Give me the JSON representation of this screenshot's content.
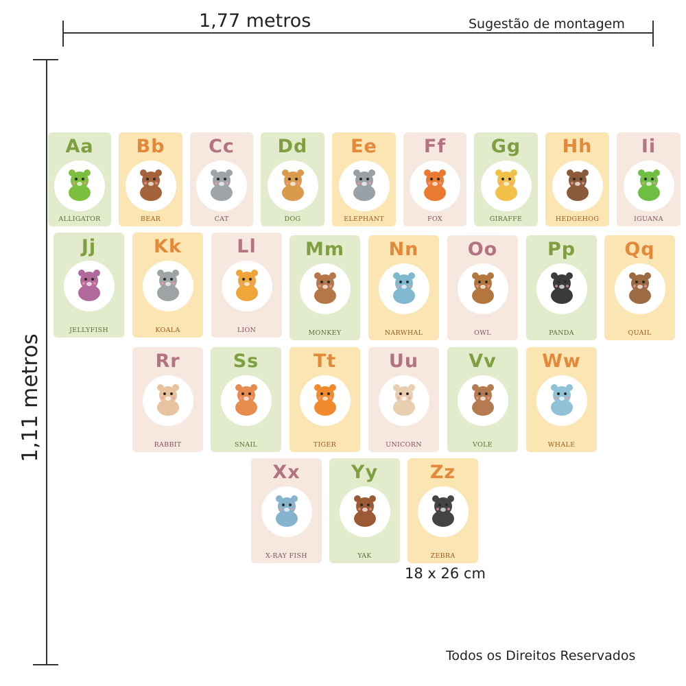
{
  "dimensions": {
    "width_label": "1,77 metros",
    "height_label": "1,11 metros",
    "suggestion_label": "Sugestão de montagem",
    "card_size_label": "18 x 26 cm"
  },
  "footer": {
    "rights": "Todos os Direitos Reservados"
  },
  "palette": {
    "green_bg": "#e2ebcb",
    "green_text": "#7ea040",
    "orange_bg": "#fbe6b3",
    "orange_text": "#e4883a",
    "pink_bg": "#f6e8de",
    "pink_text": "#b27383"
  },
  "cards": [
    {
      "letters": "Aa",
      "animal": "ALLIGATOR",
      "color": "green",
      "icon": "alligator-icon",
      "icon_color": "#7cbf3f"
    },
    {
      "letters": "Bb",
      "animal": "BEAR",
      "color": "orange",
      "icon": "bear-icon",
      "icon_color": "#a4623a"
    },
    {
      "letters": "Cc",
      "animal": "CAT",
      "color": "pink",
      "icon": "cat-icon",
      "icon_color": "#9ea4a8"
    },
    {
      "letters": "Dd",
      "animal": "DOG",
      "color": "green",
      "icon": "dog-icon",
      "icon_color": "#d99a4c"
    },
    {
      "letters": "Ee",
      "animal": "ELEPHANT",
      "color": "orange",
      "icon": "elephant-icon",
      "icon_color": "#9aa1a6"
    },
    {
      "letters": "Ff",
      "animal": "FOX",
      "color": "pink",
      "icon": "fox-icon",
      "icon_color": "#ea7a32"
    },
    {
      "letters": "Gg",
      "animal": "GIRAFFE",
      "color": "green",
      "icon": "giraffe-icon",
      "icon_color": "#f2c14a"
    },
    {
      "letters": "Hh",
      "animal": "HEDGEHOG",
      "color": "orange",
      "icon": "hedgehog-icon",
      "icon_color": "#8a5a3a"
    },
    {
      "letters": "Ii",
      "animal": "IGUANA",
      "color": "pink",
      "icon": "iguana-icon",
      "icon_color": "#6fbf45"
    },
    {
      "letters": "Jj",
      "animal": "JELLYFISH",
      "color": "green",
      "icon": "jellyfish-icon",
      "icon_color": "#b26a9c"
    },
    {
      "letters": "Kk",
      "animal": "KOALA",
      "color": "orange",
      "icon": "koala-icon",
      "icon_color": "#9ea3a6"
    },
    {
      "letters": "Ll",
      "animal": "LION",
      "color": "pink",
      "icon": "lion-icon",
      "icon_color": "#eea53a"
    },
    {
      "letters": "Mm",
      "animal": "MONKEY",
      "color": "green",
      "icon": "monkey-icon",
      "icon_color": "#b57749"
    },
    {
      "letters": "Nn",
      "animal": "NARWHAL",
      "color": "orange",
      "icon": "narwhal-icon",
      "icon_color": "#7fb8cf"
    },
    {
      "letters": "Oo",
      "animal": "OWL",
      "color": "pink",
      "icon": "owl-icon",
      "icon_color": "#b3773e"
    },
    {
      "letters": "Pp",
      "animal": "PANDA",
      "color": "green",
      "icon": "panda-icon",
      "icon_color": "#3b3b3b"
    },
    {
      "letters": "Qq",
      "animal": "QUAIL",
      "color": "orange",
      "icon": "quail-icon",
      "icon_color": "#9c6b43"
    },
    {
      "letters": "Rr",
      "animal": "RABBIT",
      "color": "pink",
      "icon": "rabbit-icon",
      "icon_color": "#e8c3a0"
    },
    {
      "letters": "Ss",
      "animal": "SNAIL",
      "color": "green",
      "icon": "snail-icon",
      "icon_color": "#e88b4f"
    },
    {
      "letters": "Tt",
      "animal": "TIGER",
      "color": "orange",
      "icon": "tiger-icon",
      "icon_color": "#f08a2c"
    },
    {
      "letters": "Uu",
      "animal": "UNICORN",
      "color": "pink",
      "icon": "unicorn-icon",
      "icon_color": "#e7cfb0"
    },
    {
      "letters": "Vv",
      "animal": "VOLE",
      "color": "green",
      "icon": "vole-icon",
      "icon_color": "#b47a50"
    },
    {
      "letters": "Ww",
      "animal": "WHALE",
      "color": "orange",
      "icon": "whale-icon",
      "icon_color": "#8fc2d6"
    },
    {
      "letters": "Xx",
      "animal": "X-RAY FISH",
      "color": "pink",
      "icon": "x-ray-fish-icon",
      "icon_color": "#86b4cf"
    },
    {
      "letters": "Yy",
      "animal": "YAK",
      "color": "green",
      "icon": "yak-icon",
      "icon_color": "#9b5a33"
    },
    {
      "letters": "Zz",
      "animal": "ZEBRA",
      "color": "orange",
      "icon": "zebra-icon",
      "icon_color": "#444444"
    }
  ]
}
